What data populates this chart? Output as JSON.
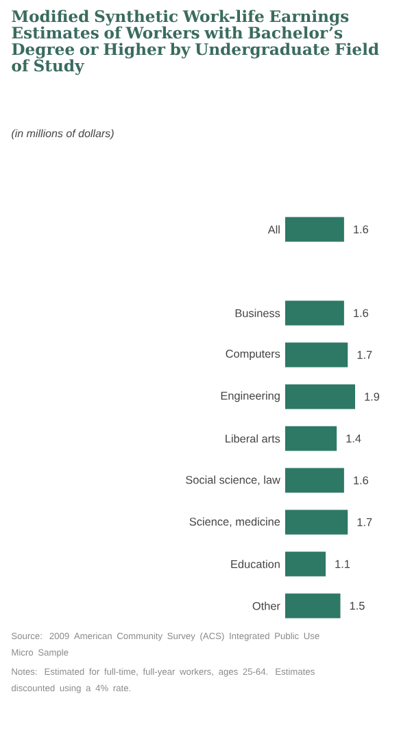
{
  "chart_data": {
    "type": "bar",
    "orientation": "horizontal",
    "title": "Modified Synthetic Work-life Earnings Estimates of Workers with Bachelor’s Degree or Higher by Undergraduate Field of Study",
    "subtitle": "(in millions of dollars)",
    "categories": [
      "All",
      null,
      "Business",
      "Computers",
      "Engineering",
      "Liberal arts",
      "Social science, law",
      "Science, medicine",
      "Education",
      "Other"
    ],
    "values": [
      1.6,
      null,
      1.6,
      1.7,
      1.9,
      1.4,
      1.6,
      1.7,
      1.1,
      1.5
    ],
    "color": "#2e7866",
    "data_labels": true,
    "annotations": [
      "Source: 2009 American Community Survey (ACS) Integrated Public Use Micro Sample",
      "Notes: Estimated for full-time, full-year workers, ages 25-64. Estimates discounted using a 4% rate."
    ]
  }
}
